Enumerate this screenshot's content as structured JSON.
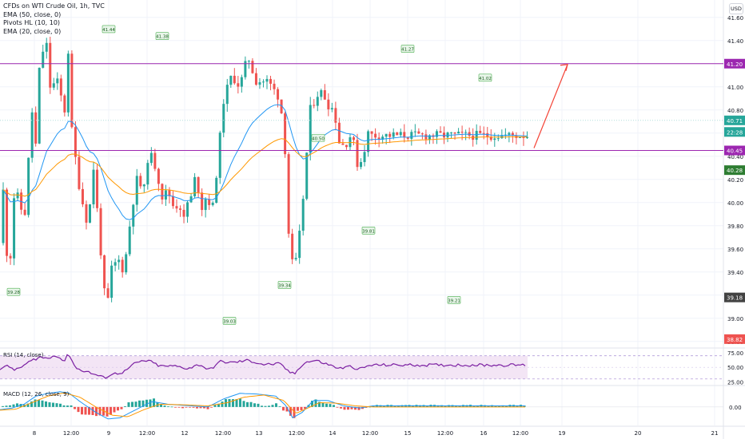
{
  "header": {
    "title": "CFDs on WTI Crude Oil, 1h, TVC",
    "indicators": [
      "EMA (50, close, 0)",
      "Pivots HL (10, 10)",
      "EMA (20, close, 0)"
    ]
  },
  "currency_label": "USD",
  "colors": {
    "up": "#26a69a",
    "down": "#ef5350",
    "ema20": "#2196f3",
    "ema50": "#ff9800",
    "level_line": "#9c27b0",
    "rsi": "#7b1fa2",
    "rsi_band": "#f3e5f5",
    "arrow": "#f44336",
    "macd_line": "#2196f3",
    "signal_line": "#ff9800"
  },
  "chart_data": [
    {
      "type": "candlestick",
      "title": "CFDs on WTI Crude Oil, 1h, TVC",
      "ylim": [
        38.75,
        41.75
      ],
      "y_ticks": [
        "41.60",
        "41.40",
        "41.20",
        "41.00",
        "40.80",
        "40.60",
        "40.40",
        "40.20",
        "40.00",
        "39.80",
        "39.60",
        "39.40",
        "39.20",
        "39.00",
        "38.80"
      ],
      "x_ticks": [
        "8",
        "12:00",
        "9",
        "12:00",
        "12",
        "12:00",
        "13",
        "12:00",
        "14",
        "12:00",
        "15",
        "12:00",
        "16",
        "12:00",
        "19",
        "20",
        "21"
      ],
      "candle_count": 146,
      "anchors": [
        [
          0,
          39.65
        ],
        [
          4,
          40.1
        ],
        [
          11,
          39.28
        ],
        [
          17,
          40.05
        ],
        [
          24,
          40.05
        ],
        [
          30,
          39.8
        ],
        [
          40,
          40.8
        ],
        [
          44,
          40.4
        ],
        [
          50,
          41.25
        ],
        [
          58,
          41.38
        ],
        [
          62,
          41.0
        ],
        [
          74,
          41.05
        ],
        [
          80,
          40.7
        ],
        [
          86,
          41.38
        ],
        [
          90,
          40.6
        ],
        [
          100,
          40.1
        ],
        [
          110,
          39.8
        ],
        [
          117,
          40.3
        ],
        [
          127,
          39.5
        ],
        [
          133,
          39.03
        ],
        [
          140,
          39.45
        ],
        [
          149,
          39.5
        ],
        [
          155,
          39.4
        ],
        [
          164,
          39.9
        ],
        [
          171,
          40.2
        ],
        [
          180,
          40.1
        ],
        [
          186,
          40.45
        ],
        [
          195,
          40.3
        ],
        [
          203,
          40.05
        ],
        [
          210,
          40.1
        ],
        [
          218,
          39.95
        ],
        [
          224,
          40.0
        ],
        [
          230,
          39.85
        ],
        [
          234,
          40.0
        ],
        [
          238,
          40.0
        ],
        [
          245,
          40.25
        ],
        [
          252,
          39.95
        ],
        [
          258,
          40.05
        ],
        [
          262,
          40.0
        ],
        [
          268,
          39.95
        ],
        [
          270,
          40.2
        ],
        [
          280,
          40.9
        ],
        [
          290,
          41.1
        ],
        [
          300,
          41.0
        ],
        [
          310,
          41.27
        ],
        [
          320,
          41.05
        ],
        [
          335,
          41.05
        ],
        [
          350,
          40.9
        ],
        [
          356,
          40.55
        ],
        [
          362,
          39.6
        ],
        [
          368,
          39.4
        ],
        [
          373,
          39.6
        ],
        [
          380,
          40.1
        ],
        [
          388,
          40.8
        ],
        [
          398,
          40.95
        ],
        [
          404,
          40.95
        ],
        [
          410,
          40.85
        ],
        [
          418,
          40.8
        ],
        [
          425,
          40.5
        ],
        [
          432,
          40.5
        ],
        [
          440,
          40.6
        ],
        [
          448,
          40.3
        ],
        [
          454,
          40.4
        ],
        [
          460,
          40.6
        ],
        [
          466,
          40.58
        ]
      ],
      "pivot_labels": [
        {
          "text": "41.44",
          "kind": "high",
          "value": 41.44
        },
        {
          "text": "41.38",
          "kind": "high",
          "value": 41.38
        },
        {
          "text": "40.50",
          "kind": "high",
          "value": 40.5
        },
        {
          "text": "41.27",
          "kind": "high",
          "value": 41.27
        },
        {
          "text": "41.02",
          "kind": "high",
          "value": 41.02
        },
        {
          "text": "39.28",
          "kind": "low",
          "value": 39.28
        },
        {
          "text": "39.03",
          "kind": "low",
          "value": 39.03
        },
        {
          "text": "39.34",
          "kind": "low",
          "value": 39.34
        },
        {
          "text": "39.81",
          "kind": "low",
          "value": 39.81
        },
        {
          "text": "39.21",
          "kind": "low",
          "value": 39.21
        }
      ],
      "horizontal_levels": [
        41.2,
        40.45
      ],
      "price_tags": [
        {
          "text": "41.20",
          "value": 41.2,
          "color": "#9c27b0"
        },
        {
          "text": "40.71",
          "value": 40.71,
          "color": "#26a69a"
        },
        {
          "text": "22:28",
          "value": 40.61,
          "color": "#26a69a"
        },
        {
          "text": "40.45",
          "value": 40.45,
          "color": "#9c27b0"
        },
        {
          "text": "40.28",
          "value": 40.28,
          "color": "#2e7d32"
        },
        {
          "text": "39.18",
          "value": 39.18,
          "color": "#424242"
        },
        {
          "text": "38.82",
          "value": 38.82,
          "color": "#ef5350"
        }
      ],
      "series": [
        {
          "name": "EMA (20, close, 0)",
          "color": "#2196f3"
        },
        {
          "name": "EMA (50, close, 0)",
          "color": "#ff9800"
        }
      ]
    },
    {
      "type": "line",
      "title": "RSI (14, close)",
      "ylim": [
        20,
        82
      ],
      "y_ticks": [
        "75.00",
        "50.00",
        "25.00"
      ],
      "band": [
        30,
        70
      ],
      "anchors": [
        [
          0,
          48
        ],
        [
          10,
          52
        ],
        [
          20,
          45
        ],
        [
          40,
          62
        ],
        [
          50,
          68
        ],
        [
          60,
          65
        ],
        [
          70,
          72
        ],
        [
          80,
          60
        ],
        [
          86,
          74
        ],
        [
          95,
          48
        ],
        [
          110,
          42
        ],
        [
          130,
          32
        ],
        [
          140,
          38
        ],
        [
          155,
          42
        ],
        [
          170,
          58
        ],
        [
          185,
          62
        ],
        [
          200,
          52
        ],
        [
          220,
          52
        ],
        [
          235,
          48
        ],
        [
          250,
          55
        ],
        [
          262,
          45
        ],
        [
          275,
          60
        ],
        [
          290,
          58
        ],
        [
          310,
          62
        ],
        [
          330,
          55
        ],
        [
          350,
          56
        ],
        [
          362,
          42
        ],
        [
          368,
          38
        ],
        [
          380,
          58
        ],
        [
          395,
          62
        ],
        [
          410,
          55
        ],
        [
          425,
          48
        ],
        [
          440,
          52
        ],
        [
          448,
          46
        ],
        [
          460,
          52
        ],
        [
          466,
          54
        ]
      ]
    },
    {
      "type": "bar",
      "title": "MACD (12, 26, close, 9)",
      "ylim": [
        -0.34,
        0.38
      ],
      "y_ticks": [
        "0.00"
      ],
      "macd_anchors": [
        [
          0,
          -0.05
        ],
        [
          15,
          -0.02
        ],
        [
          30,
          0.05
        ],
        [
          45,
          0.2
        ],
        [
          60,
          0.25
        ],
        [
          75,
          0.28
        ],
        [
          86,
          0.26
        ],
        [
          100,
          0.1
        ],
        [
          120,
          -0.1
        ],
        [
          135,
          -0.22
        ],
        [
          150,
          -0.2
        ],
        [
          170,
          -0.05
        ],
        [
          190,
          0.1
        ],
        [
          210,
          0.05
        ],
        [
          240,
          0.02
        ],
        [
          260,
          0.0
        ],
        [
          280,
          0.15
        ],
        [
          300,
          0.25
        ],
        [
          320,
          0.24
        ],
        [
          345,
          0.2
        ],
        [
          358,
          0.02
        ],
        [
          366,
          -0.2
        ],
        [
          378,
          -0.1
        ],
        [
          392,
          0.12
        ],
        [
          410,
          0.12
        ],
        [
          430,
          0.02
        ],
        [
          450,
          -0.02
        ],
        [
          466,
          0.02
        ]
      ],
      "signal_anchors": [
        [
          0,
          -0.06
        ],
        [
          20,
          -0.04
        ],
        [
          40,
          0.08
        ],
        [
          60,
          0.2
        ],
        [
          80,
          0.26
        ],
        [
          100,
          0.18
        ],
        [
          120,
          0.0
        ],
        [
          140,
          -0.15
        ],
        [
          160,
          -0.18
        ],
        [
          180,
          -0.05
        ],
        [
          200,
          0.05
        ],
        [
          230,
          0.04
        ],
        [
          260,
          0.02
        ],
        [
          285,
          0.08
        ],
        [
          305,
          0.18
        ],
        [
          330,
          0.22
        ],
        [
          355,
          0.12
        ],
        [
          370,
          -0.12
        ],
        [
          385,
          -0.02
        ],
        [
          400,
          0.08
        ],
        [
          420,
          0.07
        ],
        [
          445,
          0.02
        ],
        [
          466,
          0.0
        ]
      ]
    }
  ]
}
